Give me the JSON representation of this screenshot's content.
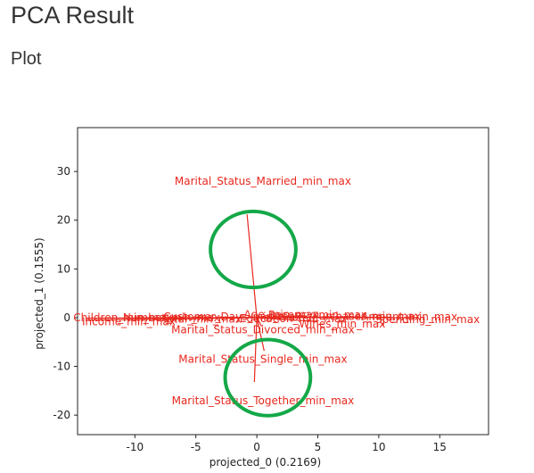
{
  "page": {
    "title": "PCA Result",
    "section": "Plot"
  },
  "chart_data": {
    "type": "scatter",
    "xlabel": "projected_0 (0.2169)",
    "ylabel": "projected_1 (0.1555)",
    "xlim": [
      -14.7,
      19
    ],
    "ylim": [
      -24,
      39
    ],
    "xticks": [
      -10,
      -5,
      0,
      5,
      10,
      15
    ],
    "yticks": [
      -20,
      -10,
      0,
      10,
      20,
      30
    ],
    "grid": false,
    "label_color": "#e8281e",
    "highlight_color": "#14a848",
    "loadings": [
      {
        "label": "Marital_Status_Married_min_max",
        "x": -0.8,
        "y": 21.2,
        "text_x": 0.5,
        "text_y": 28
      },
      {
        "label": "Marital_Status_Divorced_min_max",
        "x": 0.4,
        "y": -1.8,
        "text_x": 0.5,
        "text_y": -2.5
      },
      {
        "label": "Marital_Status_Single_min_max",
        "x": 0.6,
        "y": -6.8,
        "text_x": 0.5,
        "text_y": -8.5
      },
      {
        "label": "Marital_Status_Together_min_max",
        "x": -0.2,
        "y": -13.2,
        "text_x": 0.5,
        "text_y": -17
      },
      {
        "label": "Children_min_max",
        "x": -14,
        "y": -0.1,
        "text_x": -11,
        "text_y": 0
      },
      {
        "label": "Income_min_max",
        "x": -14,
        "y": -0.5,
        "text_x": -10.5,
        "text_y": -0.8
      },
      {
        "label": "Number_min_max",
        "x": -10,
        "y": 0,
        "text_x": -7,
        "text_y": 0
      },
      {
        "label": "Total_min_max",
        "x": -7,
        "y": -0.2,
        "text_x": -4.5,
        "text_y": -0.3
      },
      {
        "label": "Purchases_min_max",
        "x": 8,
        "y": 0.2,
        "text_x": 9,
        "text_y": 0.3
      },
      {
        "label": "Amount_min_max",
        "x": 11,
        "y": 0.1,
        "text_x": 12.5,
        "text_y": 0.2
      },
      {
        "label": "Spending_min_max",
        "x": 13,
        "y": 0,
        "text_x": 14,
        "text_y": -0.4
      },
      {
        "label": "Wines_min_max",
        "x": 5,
        "y": -0.8,
        "text_x": 7,
        "text_y": -1.3
      },
      {
        "label": "Recency_min_max",
        "x": 4,
        "y": 0.4,
        "text_x": 5,
        "text_y": 0.5
      },
      {
        "label": "Education_min_max",
        "x": 2,
        "y": -0.3,
        "text_x": 3,
        "text_y": -0.2
      },
      {
        "label": "Customer_Days_min_max",
        "x": -3,
        "y": 0.1,
        "text_x": -2,
        "text_y": 0.2
      },
      {
        "label": "Age_min_max",
        "x": 1,
        "y": 0.5,
        "text_x": 2,
        "text_y": 0.6
      }
    ],
    "highlights": [
      {
        "x": -0.3,
        "y": 14,
        "rx": 3.5,
        "ry": 7.8
      },
      {
        "x": 0.9,
        "y": -12.3,
        "rx": 3.5,
        "ry": 7.8
      }
    ]
  }
}
